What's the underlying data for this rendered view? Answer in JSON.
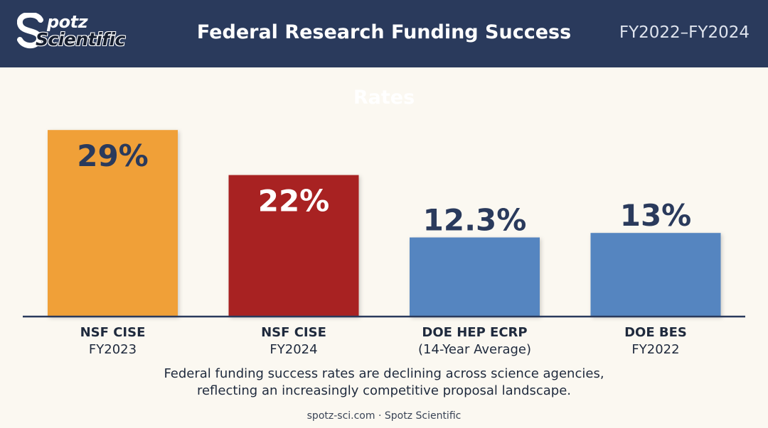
{
  "header": {
    "logo_top": "potz",
    "logo_bottom": "Scientific",
    "title": "Federal Research Funding Success Rates",
    "period": "FY2022–FY2024"
  },
  "chart_data": {
    "type": "bar",
    "categories": [
      {
        "name": "NSF CISE",
        "sub": "FY2023"
      },
      {
        "name": "NSF CISE",
        "sub": "FY2024"
      },
      {
        "name": "DOE HEP ECRP",
        "sub": "(14-Year Average)"
      },
      {
        "name": "DOE BES",
        "sub": "FY2022"
      }
    ],
    "values": [
      29,
      22,
      12.3,
      13
    ],
    "value_labels": [
      "29%",
      "22%",
      "12.3%",
      "13%"
    ],
    "colors": [
      "#f0a039",
      "#a82424",
      "#5585c0",
      "#5585c0"
    ],
    "label_inside": [
      true,
      true,
      false,
      false
    ],
    "label_colors": [
      "#2a3a5c",
      "#ffffff",
      "#2a3a5c",
      "#2a3a5c"
    ],
    "title": "Federal Research Funding Success Rates",
    "ylim": [
      0,
      32
    ],
    "grid": false
  },
  "caption": {
    "line1": "Federal funding success rates are declining across science agencies,",
    "line2": "reflecting an increasingly competitive proposal landscape."
  },
  "footer": {
    "text": "spotz-sci.com · Spotz Scientific"
  }
}
